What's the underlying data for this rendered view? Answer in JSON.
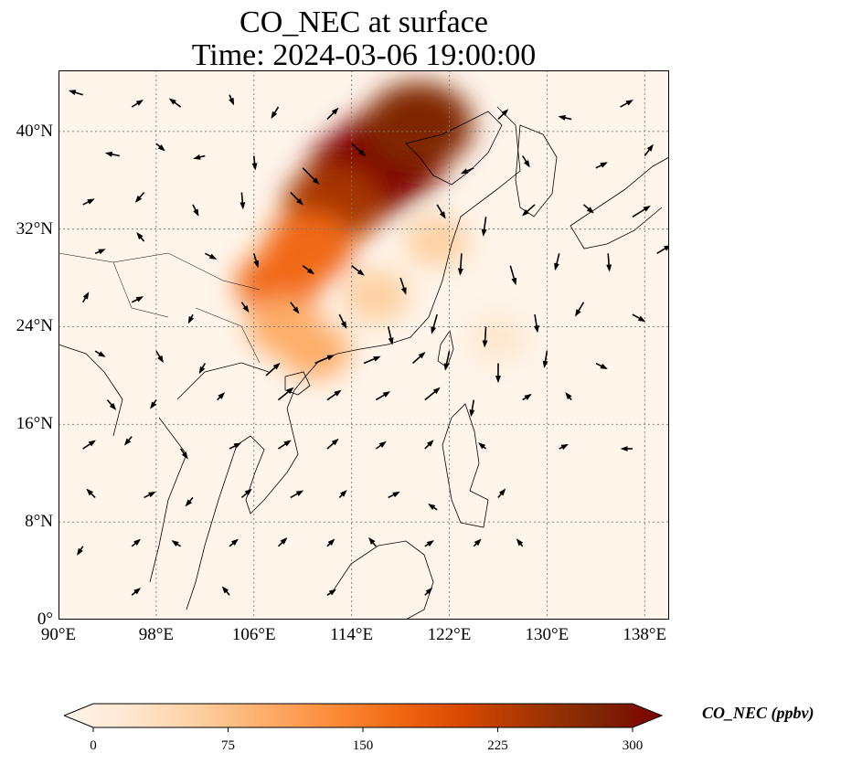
{
  "title_line1": "CO_NEC at surface",
  "title_line2": "Time: 2024-03-06 19:00:00",
  "map": {
    "lon_range": [
      90,
      140
    ],
    "lat_range": [
      0,
      45
    ],
    "lon_ticks": [
      90,
      98,
      106,
      114,
      122,
      130,
      138
    ],
    "lat_ticks": [
      0,
      8,
      16,
      24,
      32,
      40
    ],
    "lon_tick_labels": [
      "90°E",
      "98°E",
      "106°E",
      "114°E",
      "122°E",
      "130°E",
      "138°E"
    ],
    "lat_tick_labels": [
      "0°",
      "8°N",
      "16°N",
      "24°N",
      "32°N",
      "40°N"
    ],
    "gridlines": "dotted",
    "background_color": "#fff5eb",
    "coastline_color": "#000000"
  },
  "colorbar": {
    "title": "CO_NEC (ppbv)",
    "min": 0,
    "max": 300,
    "ticks": [
      0,
      75,
      150,
      225,
      300
    ],
    "tick_labels": [
      "0",
      "75",
      "150",
      "225",
      "300"
    ],
    "extend": "both",
    "colormap": [
      "#fff5eb",
      "#fee6ce",
      "#fdd0a2",
      "#fdae6b",
      "#fd8d3c",
      "#f16913",
      "#d94801",
      "#a63603",
      "#7f2704",
      "#7f0000"
    ]
  },
  "plumes": [
    {
      "lon": 117.0,
      "lat": 38.0,
      "value": 300
    },
    {
      "lon": 115.0,
      "lat": 36.5,
      "value": 290
    },
    {
      "lon": 119.5,
      "lat": 40.5,
      "value": 260
    },
    {
      "lon": 112.5,
      "lat": 34.0,
      "value": 220
    },
    {
      "lon": 110.5,
      "lat": 30.5,
      "value": 175
    },
    {
      "lon": 108.0,
      "lat": 27.5,
      "value": 150
    },
    {
      "lon": 108.5,
      "lat": 24.0,
      "value": 110
    },
    {
      "lon": 111.0,
      "lat": 22.0,
      "value": 90
    },
    {
      "lon": 121.0,
      "lat": 31.0,
      "value": 60
    },
    {
      "lon": 126.0,
      "lat": 23.0,
      "value": 35
    },
    {
      "lon": 116.0,
      "lat": 26.5,
      "value": 75
    }
  ],
  "wind_vectors": [
    [
      92,
      43,
      -1,
      0.3
    ],
    [
      96,
      42,
      0.8,
      0.5
    ],
    [
      100,
      42,
      -0.8,
      0.6
    ],
    [
      104,
      43,
      0.3,
      -0.7
    ],
    [
      108,
      42,
      -0.5,
      -0.8
    ],
    [
      112,
      41,
      0.8,
      0.8
    ],
    [
      126,
      41,
      0.7,
      0.7
    ],
    [
      132,
      41,
      -0.9,
      0.2
    ],
    [
      136,
      42,
      0.9,
      0.5
    ],
    [
      95,
      38,
      -1,
      0.2
    ],
    [
      98,
      39,
      0.6,
      -0.5
    ],
    [
      102,
      38,
      -0.8,
      -0.2
    ],
    [
      106,
      38,
      0.1,
      -1
    ],
    [
      110,
      37,
      1.2,
      -1.2
    ],
    [
      114,
      39,
      1,
      -0.9
    ],
    [
      124,
      37,
      -0.9,
      -0.4
    ],
    [
      128,
      38,
      0.5,
      -0.8
    ],
    [
      134,
      37,
      0.8,
      0.4
    ],
    [
      138,
      38,
      0.6,
      0.8
    ],
    [
      92,
      34,
      0.8,
      0.4
    ],
    [
      97,
      35,
      -0.6,
      -0.7
    ],
    [
      101,
      34,
      0.4,
      -0.8
    ],
    [
      105,
      35,
      0.1,
      -1.2
    ],
    [
      109,
      35,
      0.9,
      -0.9
    ],
    [
      121,
      34,
      0.6,
      -1
    ],
    [
      125,
      33,
      -0.2,
      -1.4
    ],
    [
      129,
      34,
      -0.9,
      -0.8
    ],
    [
      133,
      34,
      0.7,
      -0.6
    ],
    [
      137,
      33,
      1.3,
      0.8
    ],
    [
      93,
      30,
      0.7,
      0.3
    ],
    [
      97,
      31,
      -0.5,
      0.6
    ],
    [
      102,
      30,
      0.8,
      -0.4
    ],
    [
      106,
      30,
      0.3,
      -1
    ],
    [
      110,
      29,
      0.8,
      -0.6
    ],
    [
      114,
      29,
      0.9,
      -0.7
    ],
    [
      118,
      28,
      0.4,
      -1.2
    ],
    [
      123,
      30,
      -0.1,
      -1.6
    ],
    [
      127,
      29,
      0.4,
      -1.4
    ],
    [
      131,
      30,
      -0.3,
      -1.2
    ],
    [
      135,
      30,
      0.1,
      -1.3
    ],
    [
      139,
      30,
      1,
      0.6
    ],
    [
      92,
      26,
      0.4,
      0.7
    ],
    [
      96,
      26,
      0.8,
      0.4
    ],
    [
      101,
      25,
      -0.3,
      -0.6
    ],
    [
      105,
      26,
      0.5,
      -0.7
    ],
    [
      109,
      26,
      0.6,
      -0.8
    ],
    [
      113,
      25,
      0.5,
      -1
    ],
    [
      117,
      24,
      0.3,
      -1.3
    ],
    [
      121,
      25,
      -0.4,
      -1.4
    ],
    [
      125,
      24,
      -0.1,
      -1.5
    ],
    [
      129,
      25,
      0.2,
      -1.3
    ],
    [
      133,
      26,
      -0.6,
      -1
    ],
    [
      137,
      25,
      0.9,
      -0.5
    ],
    [
      93,
      22,
      0.7,
      -0.4
    ],
    [
      98,
      22,
      0.5,
      -0.8
    ],
    [
      102,
      21,
      -0.4,
      -0.7
    ],
    [
      107,
      20,
      1,
      0.9
    ],
    [
      111,
      21,
      1.4,
      0.6
    ],
    [
      115,
      21,
      1.2,
      0.5
    ],
    [
      119,
      21,
      0.9,
      0.8
    ],
    [
      122,
      22,
      -0.3,
      -1.4
    ],
    [
      126,
      21,
      0,
      -1.4
    ],
    [
      130,
      22,
      -0.2,
      -1.2
    ],
    [
      134,
      21,
      0.8,
      -0.4
    ],
    [
      94,
      18,
      0.6,
      -0.7
    ],
    [
      98,
      18,
      -0.4,
      -0.6
    ],
    [
      103,
      18,
      0.5,
      0.5
    ],
    [
      108,
      18,
      1.1,
      0.9
    ],
    [
      112,
      18,
      1,
      0.7
    ],
    [
      116,
      18,
      1,
      0.6
    ],
    [
      120,
      18,
      1.1,
      0.9
    ],
    [
      124,
      18,
      -0.2,
      -1.2
    ],
    [
      128,
      18,
      0.6,
      0.4
    ],
    [
      132,
      18,
      -0.4,
      0.5
    ],
    [
      92,
      14,
      0.9,
      0.6
    ],
    [
      96,
      15,
      -0.5,
      -0.6
    ],
    [
      100,
      14,
      0.5,
      -0.7
    ],
    [
      104,
      14,
      0.8,
      0.4
    ],
    [
      108,
      14,
      0.9,
      0.6
    ],
    [
      112,
      14,
      0.8,
      0.7
    ],
    [
      116,
      14,
      0.7,
      0.5
    ],
    [
      120,
      14,
      0.6,
      0.6
    ],
    [
      125,
      14,
      -0.5,
      0.4
    ],
    [
      131,
      14,
      0.6,
      0.3
    ],
    [
      137,
      14,
      -0.8,
      0
    ],
    [
      93,
      10,
      -0.6,
      0.6
    ],
    [
      97,
      10,
      0.8,
      0.4
    ],
    [
      101,
      10,
      -0.5,
      -0.6
    ],
    [
      105,
      10,
      0.7,
      0.6
    ],
    [
      109,
      10,
      0.9,
      0.5
    ],
    [
      113,
      10,
      0.5,
      0.5
    ],
    [
      117,
      10,
      0.8,
      0.4
    ],
    [
      121,
      9,
      -0.6,
      0.4
    ],
    [
      126,
      10,
      0.5,
      0.6
    ],
    [
      92,
      6,
      -0.4,
      -0.6
    ],
    [
      96,
      6,
      0.6,
      0.5
    ],
    [
      100,
      6,
      -0.6,
      0.4
    ],
    [
      104,
      6,
      0.6,
      0.5
    ],
    [
      108,
      6,
      0.6,
      0.6
    ],
    [
      112,
      6,
      0.5,
      0.5
    ],
    [
      116,
      6,
      -0.5,
      0.6
    ],
    [
      120,
      6,
      0.6,
      0.4
    ],
    [
      124,
      6,
      0.5,
      0.5
    ],
    [
      128,
      6,
      -0.4,
      0.5
    ],
    [
      96,
      2,
      0.6,
      0.5
    ],
    [
      104,
      2,
      -0.5,
      0.6
    ],
    [
      112,
      2,
      0.6,
      0.4
    ],
    [
      120,
      2,
      0.5,
      0.5
    ]
  ]
}
